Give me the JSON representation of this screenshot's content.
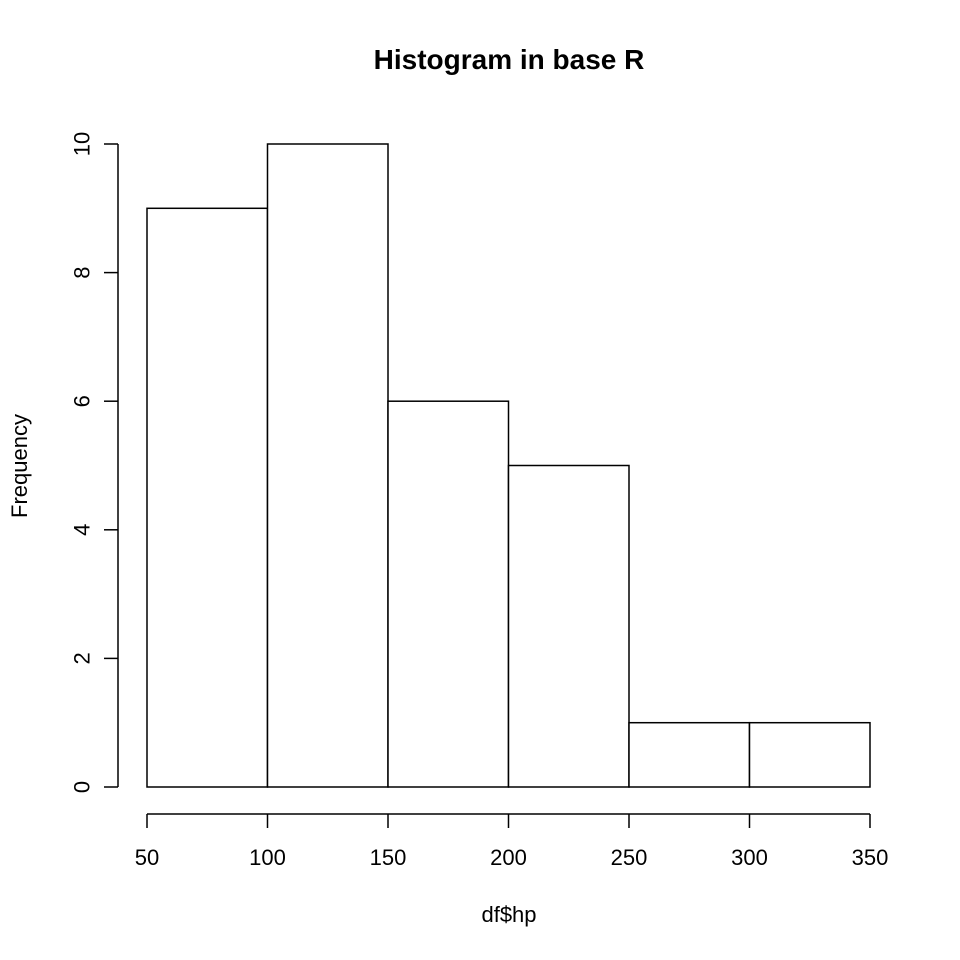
{
  "chart_data": {
    "type": "bar",
    "subtype": "histogram",
    "title": "Histogram in base R",
    "xlabel": "df$hp",
    "ylabel": "Frequency",
    "bins": [
      {
        "from": 50,
        "to": 100,
        "count": 9
      },
      {
        "from": 100,
        "to": 150,
        "count": 10
      },
      {
        "from": 150,
        "to": 200,
        "count": 6
      },
      {
        "from": 200,
        "to": 250,
        "count": 5
      },
      {
        "from": 250,
        "to": 300,
        "count": 1
      },
      {
        "from": 300,
        "to": 350,
        "count": 1
      }
    ],
    "xlim": [
      50,
      350
    ],
    "ylim": [
      0,
      10
    ],
    "xticks": [
      50,
      100,
      150,
      200,
      250,
      300,
      350
    ],
    "yticks": [
      0,
      2,
      4,
      6,
      8,
      10
    ],
    "xtick_labels": [
      "50",
      "100",
      "150",
      "200",
      "250",
      "300",
      "350"
    ],
    "ytick_labels": [
      "0",
      "2",
      "4",
      "6",
      "8",
      "10"
    ],
    "grid": false,
    "colors": {
      "bar_fill": "#ffffff",
      "bar_stroke": "#000000",
      "background": "#ffffff"
    }
  }
}
